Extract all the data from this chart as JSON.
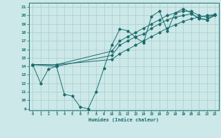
{
  "xlabel": "Humidex (Indice chaleur)",
  "bg_color": "#cce8e8",
  "grid_color": "#aacccc",
  "line_color": "#1a6b6b",
  "xlim": [
    -0.5,
    23.5
  ],
  "ylim": [
    8.8,
    21.5
  ],
  "xticks": [
    0,
    1,
    2,
    3,
    4,
    5,
    6,
    7,
    8,
    9,
    10,
    11,
    12,
    13,
    14,
    15,
    16,
    17,
    18,
    19,
    20,
    21,
    22,
    23
  ],
  "yticks": [
    9,
    10,
    11,
    12,
    13,
    14,
    15,
    16,
    17,
    18,
    19,
    20,
    21
  ],
  "line1_x": [
    0,
    1,
    2,
    3,
    4,
    5,
    6,
    7,
    8,
    9,
    10,
    11,
    12,
    13,
    14,
    15,
    16,
    17,
    18,
    19,
    20,
    21,
    22,
    23
  ],
  "line1_y": [
    14.2,
    12.0,
    13.7,
    14.0,
    10.7,
    10.5,
    9.2,
    9.0,
    11.0,
    13.8,
    16.5,
    18.4,
    18.2,
    17.4,
    16.8,
    19.9,
    20.5,
    18.2,
    20.3,
    20.8,
    20.3,
    19.6,
    19.5,
    20.1
  ],
  "line2_x": [
    0,
    3,
    10,
    11,
    12,
    13,
    14,
    15,
    16,
    17,
    18,
    19,
    20,
    21,
    22,
    23
  ],
  "line2_y": [
    14.2,
    14.2,
    15.8,
    17.0,
    17.5,
    18.0,
    18.5,
    19.0,
    19.5,
    20.0,
    20.3,
    20.5,
    20.5,
    20.0,
    19.8,
    20.1
  ],
  "line3_x": [
    0,
    3,
    10,
    11,
    12,
    13,
    14,
    15,
    16,
    17,
    18,
    19,
    20,
    21,
    22,
    23
  ],
  "line3_y": [
    14.2,
    14.0,
    15.3,
    16.5,
    17.0,
    17.5,
    17.8,
    18.5,
    19.0,
    19.5,
    19.8,
    20.0,
    20.2,
    19.7,
    19.5,
    20.0
  ],
  "line4_x": [
    0,
    3,
    10,
    11,
    12,
    13,
    14,
    15,
    16,
    17,
    18,
    19,
    20,
    21,
    22,
    23
  ],
  "line4_y": [
    14.2,
    14.2,
    14.8,
    15.5,
    16.0,
    16.5,
    17.0,
    17.5,
    18.0,
    18.5,
    18.9,
    19.3,
    19.6,
    19.8,
    20.0,
    20.1
  ]
}
